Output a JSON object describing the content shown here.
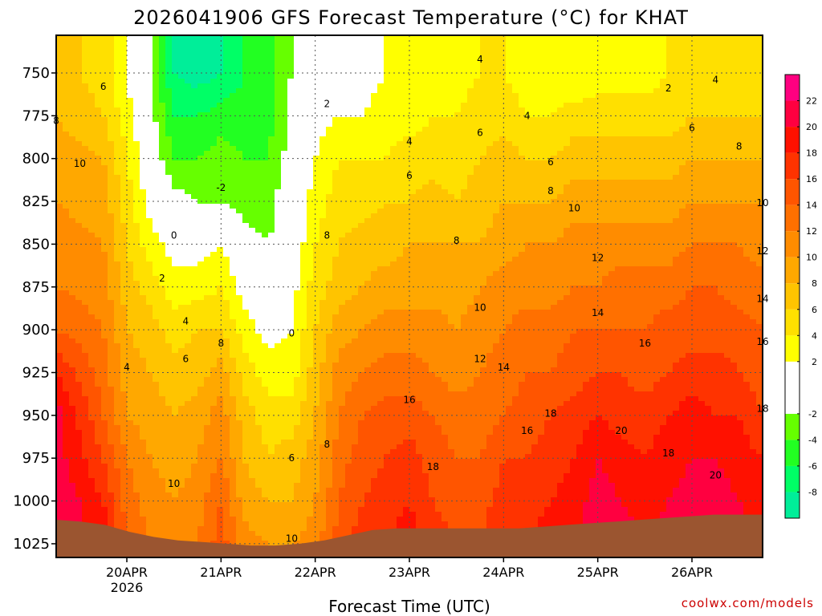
{
  "header": {
    "title": "2026041906 GFS Forecast Temperature (°C) for KHAT"
  },
  "footer": {
    "credit": "coolwx.com/models"
  },
  "chart_data": {
    "type": "heatmap",
    "title": "2026041906 GFS Forecast Temperature (°C) for KHAT",
    "xlabel": "Forecast Time (UTC)",
    "ylabel": "",
    "x_ticks": [
      "20APR",
      "21APR",
      "22APR",
      "23APR",
      "24APR",
      "25APR",
      "26APR"
    ],
    "x_tick_sublabel": "2026",
    "y_ticks": [
      750,
      775,
      800,
      825,
      850,
      875,
      900,
      925,
      950,
      975,
      1000,
      1025
    ],
    "y_axis": "pressure (hPa), inverted",
    "grid": true,
    "colorbar": {
      "ticks": [
        22,
        20,
        18,
        16,
        14,
        12,
        10,
        8,
        6,
        4,
        2,
        -2,
        -4,
        -6,
        -8
      ],
      "bands": [
        {
          "from": -10,
          "to": -8,
          "color": "#00ee99"
        },
        {
          "from": -8,
          "to": -6,
          "color": "#00ff66"
        },
        {
          "from": -6,
          "to": -4,
          "color": "#22ff22"
        },
        {
          "from": -4,
          "to": -2,
          "color": "#66ff00"
        },
        {
          "from": -2,
          "to": 2,
          "color": "#ffffff"
        },
        {
          "from": 2,
          "to": 4,
          "color": "#ffff00"
        },
        {
          "from": 4,
          "to": 6,
          "color": "#ffe000"
        },
        {
          "from": 6,
          "to": 8,
          "color": "#ffc400"
        },
        {
          "from": 8,
          "to": 10,
          "color": "#ffa800"
        },
        {
          "from": 10,
          "to": 12,
          "color": "#ff8c00"
        },
        {
          "from": 12,
          "to": 14,
          "color": "#ff7000"
        },
        {
          "from": 14,
          "to": 16,
          "color": "#ff5500"
        },
        {
          "from": 16,
          "to": 18,
          "color": "#ff3300"
        },
        {
          "from": 18,
          "to": 20,
          "color": "#ff1100"
        },
        {
          "from": 20,
          "to": 22,
          "color": "#ff0040"
        },
        {
          "from": 22,
          "to": 24,
          "color": "#ff0080"
        }
      ]
    },
    "contour_interval": 2,
    "underground_color": "#9b5530",
    "freezing_contour_color": "#b0005a",
    "columns": [
      {
        "t": "19APR06",
        "levels": [
          7,
          8,
          9,
          10,
          11,
          12,
          14,
          18,
          21,
          21,
          22,
          21
        ]
      },
      {
        "t": "19APR18",
        "levels": [
          5,
          6,
          8,
          9,
          10,
          11,
          12,
          13,
          14,
          16,
          18,
          20
        ]
      },
      {
        "t": "20APR00",
        "levels": [
          2,
          3,
          4,
          5,
          6,
          7,
          8,
          9,
          10,
          12,
          13,
          14
        ]
      },
      {
        "t": "20APR06",
        "levels": [
          -2,
          -1,
          0,
          1,
          3,
          5,
          7,
          8,
          9,
          10,
          11,
          12
        ]
      },
      {
        "t": "20APR12",
        "levels": [
          -8,
          -6,
          -4,
          -1,
          1,
          3,
          5,
          7,
          8,
          9,
          10,
          11
        ]
      },
      {
        "t": "20APR18",
        "levels": [
          -9,
          -6,
          -4,
          -2,
          1,
          3,
          6,
          7,
          9,
          10,
          11,
          12
        ]
      },
      {
        "t": "21APR00",
        "levels": [
          -8,
          -5,
          -3,
          -2,
          2,
          4,
          6,
          9,
          11,
          12,
          14,
          15
        ]
      },
      {
        "t": "21APR06",
        "levels": [
          -6,
          -5,
          -4,
          -3,
          -1,
          1,
          3,
          5,
          7,
          8,
          9,
          11
        ]
      },
      {
        "t": "21APR12",
        "levels": [
          -5,
          -5,
          -4,
          -3,
          -2,
          0,
          1,
          3,
          5,
          6,
          8,
          10
        ]
      },
      {
        "t": "21APR18",
        "levels": [
          -2,
          -1,
          -1,
          0,
          0,
          1,
          2,
          3,
          5,
          7,
          8,
          10
        ]
      },
      {
        "t": "22APR00",
        "levels": [
          0,
          1,
          2,
          3,
          4,
          5,
          6,
          7,
          8,
          9,
          10,
          11
        ]
      },
      {
        "t": "22APR06",
        "levels": [
          1,
          2,
          4,
          5,
          6,
          7,
          9,
          11,
          12,
          13,
          14,
          15
        ]
      },
      {
        "t": "22APR12",
        "levels": [
          1,
          2,
          4,
          5,
          7,
          8,
          10,
          12,
          14,
          15,
          16,
          17
        ]
      },
      {
        "t": "22APR18",
        "levels": [
          2,
          3,
          4,
          6,
          7,
          9,
          11,
          13,
          15,
          16,
          17,
          18
        ]
      },
      {
        "t": "23APR00",
        "levels": [
          2,
          3,
          5,
          6,
          8,
          9,
          11,
          13,
          15,
          17,
          18,
          19
        ]
      },
      {
        "t": "23APR06",
        "levels": [
          3,
          4,
          5,
          7,
          8,
          9,
          11,
          12,
          14,
          15,
          16,
          17
        ]
      },
      {
        "t": "23APR12",
        "levels": [
          3,
          4,
          5,
          6,
          8,
          9,
          10,
          11,
          13,
          14,
          15,
          16
        ]
      },
      {
        "t": "23APR18",
        "levels": [
          4,
          5,
          6,
          7,
          8,
          10,
          11,
          12,
          13,
          14,
          15,
          16
        ]
      },
      {
        "t": "24APR00",
        "levels": [
          4,
          5,
          7,
          8,
          9,
          11,
          12,
          13,
          14,
          16,
          17,
          18
        ]
      },
      {
        "t": "24APR06",
        "levels": [
          3,
          4,
          6,
          8,
          10,
          11,
          13,
          14,
          15,
          16,
          17,
          18
        ]
      },
      {
        "t": "24APR12",
        "levels": [
          2,
          4,
          6,
          8,
          10,
          11,
          13,
          14,
          16,
          17,
          18,
          19
        ]
      },
      {
        "t": "24APR18",
        "levels": [
          2,
          5,
          7,
          9,
          11,
          12,
          14,
          15,
          17,
          18,
          19,
          20
        ]
      },
      {
        "t": "25APR00",
        "levels": [
          3,
          5,
          7,
          9,
          11,
          12,
          14,
          16,
          18,
          20,
          21,
          21
        ]
      },
      {
        "t": "25APR06",
        "levels": [
          3,
          5,
          7,
          9,
          11,
          13,
          14,
          16,
          17,
          19,
          20,
          21
        ]
      },
      {
        "t": "25APR12",
        "levels": [
          3,
          5,
          7,
          9,
          11,
          13,
          14,
          15,
          17,
          18,
          19,
          20
        ]
      },
      {
        "t": "25APR18",
        "levels": [
          4,
          5,
          7,
          9,
          11,
          13,
          15,
          16,
          18,
          19,
          20,
          21
        ]
      },
      {
        "t": "26APR00",
        "levels": [
          4,
          6,
          8,
          10,
          12,
          14,
          15,
          17,
          19,
          20,
          21,
          22
        ]
      },
      {
        "t": "26APR06",
        "levels": [
          4,
          6,
          8,
          10,
          12,
          14,
          15,
          17,
          18,
          20,
          21,
          22
        ]
      },
      {
        "t": "26APR12",
        "levels": [
          4,
          6,
          8,
          10,
          12,
          13,
          15,
          16,
          18,
          19,
          20,
          21
        ]
      },
      {
        "t": "26APR18",
        "levels": [
          4,
          6,
          8,
          10,
          11,
          13,
          14,
          15,
          16,
          18,
          19,
          20
        ]
      }
    ],
    "surface_pressure": [
      1011,
      1012,
      1014,
      1018,
      1021,
      1023,
      1024,
      1025,
      1026,
      1026,
      1025,
      1023,
      1020,
      1017,
      1016,
      1016,
      1016,
      1016,
      1016,
      1016,
      1015,
      1014,
      1013,
      1012,
      1011,
      1010,
      1009,
      1008,
      1008,
      1008
    ],
    "contour_labels": [
      {
        "t": "19APR18",
        "p": 758,
        "text": "6"
      },
      {
        "t": "19APR06",
        "p": 778,
        "text": "8"
      },
      {
        "t": "19APR12",
        "p": 803,
        "text": "10"
      },
      {
        "t": "20APR00",
        "p": 922,
        "text": "4"
      },
      {
        "t": "20APR12",
        "p": 845,
        "text": "0"
      },
      {
        "t": "20APR09",
        "p": 870,
        "text": "2"
      },
      {
        "t": "20APR15",
        "p": 895,
        "text": "4"
      },
      {
        "t": "20APR15",
        "p": 917,
        "text": "6"
      },
      {
        "t": "20APR12",
        "p": 990,
        "text": "10"
      },
      {
        "t": "21APR00",
        "p": 908,
        "text": "8"
      },
      {
        "t": "21APR00",
        "p": 817,
        "text": "-2"
      },
      {
        "t": "21APR18",
        "p": 902,
        "text": "0"
      },
      {
        "t": "22APR03",
        "p": 768,
        "text": "2"
      },
      {
        "t": "21APR18",
        "p": 975,
        "text": "6"
      },
      {
        "t": "22APR03",
        "p": 967,
        "text": "8"
      },
      {
        "t": "21APR18",
        "p": 1022,
        "text": "10"
      },
      {
        "t": "22APR03",
        "p": 845,
        "text": "8"
      },
      {
        "t": "23APR00",
        "p": 790,
        "text": "4"
      },
      {
        "t": "23APR00",
        "p": 810,
        "text": "6"
      },
      {
        "t": "23APR18",
        "p": 742,
        "text": "4"
      },
      {
        "t": "23APR18",
        "p": 785,
        "text": "6"
      },
      {
        "t": "24APR06",
        "p": 775,
        "text": "4"
      },
      {
        "t": "24APR12",
        "p": 802,
        "text": "6"
      },
      {
        "t": "23APR12",
        "p": 848,
        "text": "8"
      },
      {
        "t": "23APR18",
        "p": 887,
        "text": "10"
      },
      {
        "t": "24APR12",
        "p": 819,
        "text": "8"
      },
      {
        "t": "24APR18",
        "p": 829,
        "text": "10"
      },
      {
        "t": "23APR18",
        "p": 917,
        "text": "12"
      },
      {
        "t": "24APR00",
        "p": 922,
        "text": "14"
      },
      {
        "t": "23APR00",
        "p": 941,
        "text": "16"
      },
      {
        "t": "23APR06",
        "p": 980,
        "text": "18"
      },
      {
        "t": "25APR00",
        "p": 858,
        "text": "12"
      },
      {
        "t": "25APR00",
        "p": 890,
        "text": "14"
      },
      {
        "t": "24APR06",
        "p": 959,
        "text": "16"
      },
      {
        "t": "24APR12",
        "p": 949,
        "text": "18"
      },
      {
        "t": "25APR12",
        "p": 908,
        "text": "16"
      },
      {
        "t": "25APR06",
        "p": 959,
        "text": "20"
      },
      {
        "t": "25APR18",
        "p": 972,
        "text": "18"
      },
      {
        "t": "25APR18",
        "p": 759,
        "text": "2"
      },
      {
        "t": "26APR06",
        "p": 754,
        "text": "4"
      },
      {
        "t": "26APR00",
        "p": 782,
        "text": "6"
      },
      {
        "t": "26APR12",
        "p": 793,
        "text": "8"
      },
      {
        "t": "26APR18",
        "p": 826,
        "text": "10"
      },
      {
        "t": "26APR18",
        "p": 854,
        "text": "12"
      },
      {
        "t": "26APR18",
        "p": 882,
        "text": "14"
      },
      {
        "t": "26APR18",
        "p": 907,
        "text": "16"
      },
      {
        "t": "26APR18",
        "p": 946,
        "text": "18"
      },
      {
        "t": "26APR06",
        "p": 985,
        "text": "20"
      }
    ]
  }
}
